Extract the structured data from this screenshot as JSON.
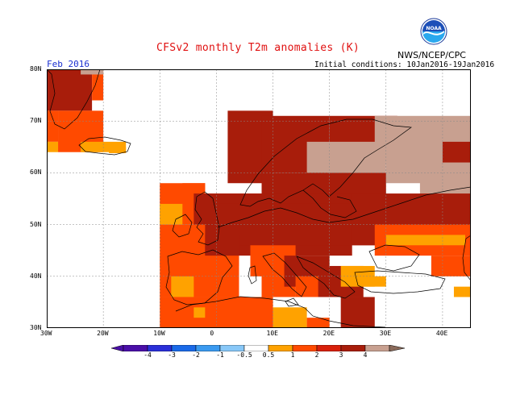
{
  "title": "CFSv2 monthly T2m anomalies (K)",
  "agency": "NWS/NCEP/CPC",
  "logo_text": "NOAA",
  "valid_month": "Feb 2016",
  "initial_conditions": "Initial conditions: 10Jan2016-19Jan2016",
  "lat_labels": [
    "80N",
    "70N",
    "60N",
    "50N",
    "40N",
    "30N"
  ],
  "lon_labels": [
    "30W",
    "20W",
    "10W",
    "0",
    "10E",
    "20E",
    "30E",
    "40E"
  ],
  "colorbar_labels": [
    "-4",
    "-3",
    "-2",
    "-1",
    "-0.5",
    "0.5",
    "1",
    "2",
    "3",
    "4"
  ],
  "colors": {
    "c1": "#ffa200",
    "c2": "#ff4a00",
    "c3": "#a81d0b",
    "c4": "#c8a090",
    "title": "#e01010",
    "valid": "#1a2fd0"
  }
}
